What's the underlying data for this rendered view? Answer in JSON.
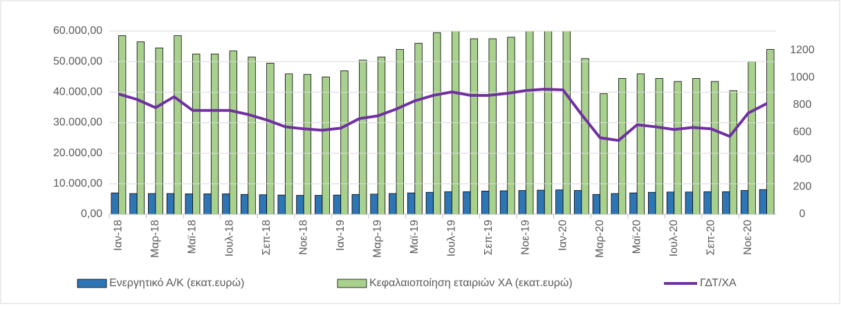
{
  "chart_data": {
    "type": "bar_line",
    "categories": [
      "Ιαν-18",
      null,
      "Μαρ-18",
      null,
      "Μαϊ-18",
      null,
      "Ιουλ-18",
      null,
      "Σεπ-18",
      null,
      "Νοε-18",
      null,
      "Ιαν-19",
      null,
      "Μαρ-19",
      null,
      "Μαϊ-19",
      null,
      "Ιουλ-19",
      null,
      "Σεπ-19",
      null,
      "Νοε-19",
      null,
      "Ιαν-20",
      null,
      "Μαρ-20",
      null,
      "Μαϊ-20",
      null,
      "Ιουλ-20",
      null,
      "Σεπ-20",
      null,
      "Νοε-20",
      null
    ],
    "series": [
      {
        "name": "Ενεργητικό Α/Κ (εκατ.ευρώ)",
        "color": "#2e75b6",
        "kind": "bar",
        "values": [
          7000,
          6800,
          6800,
          6800,
          6700,
          6700,
          6700,
          6500,
          6400,
          6300,
          6200,
          6200,
          6300,
          6500,
          6600,
          6800,
          7000,
          7200,
          7400,
          7400,
          7600,
          7700,
          7800,
          7900,
          8000,
          7800,
          6500,
          6800,
          7000,
          7200,
          7300,
          7300,
          7400,
          7400,
          7800,
          8100
        ]
      },
      {
        "name": "Κεφαλαιοποίηση εταιριών ΧΑ (εκατ.ευρώ)",
        "color": "#a9d18e",
        "kind": "bar",
        "values": [
          58500,
          56500,
          54500,
          58500,
          52500,
          52500,
          53500,
          51500,
          49500,
          46000,
          45800,
          45000,
          47000,
          50500,
          51500,
          54000,
          56000,
          59500,
          61000,
          57500,
          57500,
          58000,
          62000,
          63000,
          62000,
          51000,
          39500,
          44500,
          46000,
          44500,
          43500,
          44500,
          43500,
          40500,
          50000,
          54000
        ]
      },
      {
        "name": "ΓΔΤ/ΧΑ",
        "color": "#7030a0",
        "kind": "line",
        "axis": "y2",
        "values": [
          880,
          840,
          780,
          860,
          760,
          760,
          760,
          730,
          690,
          640,
          625,
          615,
          630,
          700,
          720,
          770,
          830,
          870,
          895,
          870,
          870,
          885,
          905,
          915,
          910,
          730,
          560,
          540,
          655,
          640,
          620,
          635,
          625,
          570,
          740,
          810
        ]
      }
    ],
    "ylim": [
      0,
      60000
    ],
    "yticks": [
      {
        "value": 0,
        "label": "0,00"
      },
      {
        "value": 10000,
        "label": "10.000,00"
      },
      {
        "value": 20000,
        "label": "20.000,00"
      },
      {
        "value": 30000,
        "label": "30.000,00"
      },
      {
        "value": 40000,
        "label": "40.000,00"
      },
      {
        "value": 50000,
        "label": "50.000,00"
      },
      {
        "value": 60000,
        "label": "60.000,00"
      }
    ],
    "y2lim": [
      0,
      1340
    ],
    "y2ticks": [
      0,
      200,
      400,
      600,
      800,
      1000,
      1200
    ],
    "grid": true
  }
}
